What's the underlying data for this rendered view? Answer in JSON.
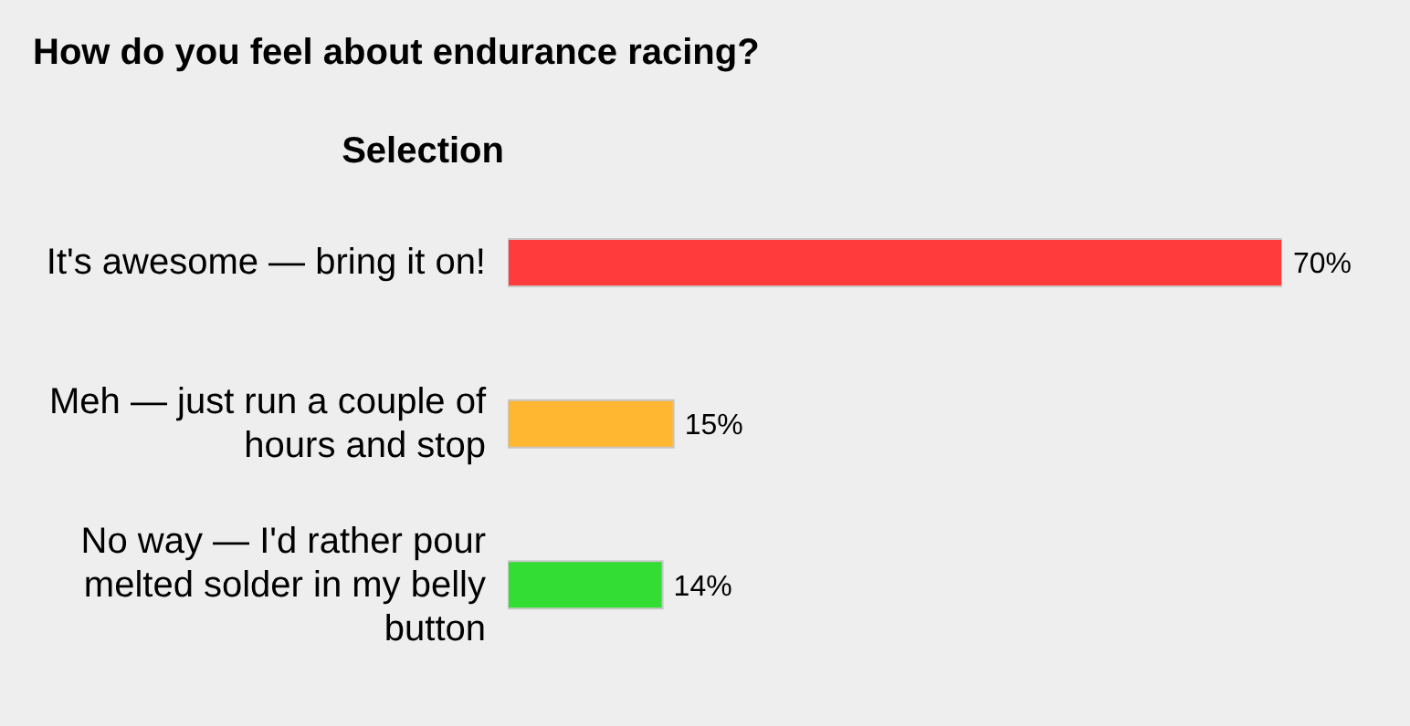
{
  "chart_data": {
    "type": "bar",
    "orientation": "horizontal",
    "title": "How do you feel about endurance racing?",
    "ylabel": "Selection",
    "categories": [
      "It's awesome — bring it on!",
      "Meh — just run a couple of hours and stop",
      "No way — I'd rather pour melted solder in my belly button"
    ],
    "values": [
      70,
      15,
      14
    ],
    "colors": [
      "#ff3b3b",
      "#ffb630",
      "#33dd33"
    ],
    "value_labels": [
      "70%",
      "15%",
      "14%"
    ]
  }
}
